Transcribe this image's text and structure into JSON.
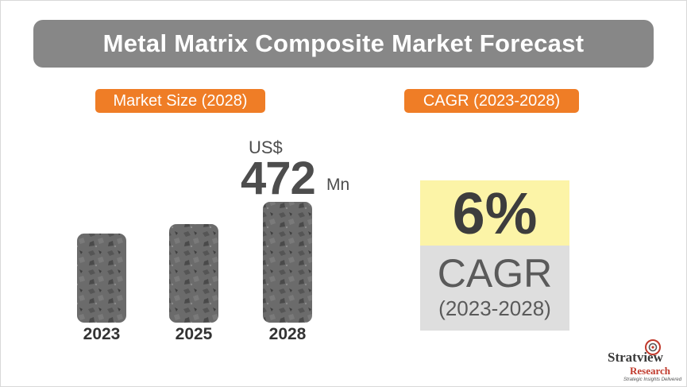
{
  "title": "Metal Matrix Composite Market Forecast",
  "market_size_label": "Market Size (2028)",
  "cagr_label": "CAGR (2023-2028)",
  "market_value": {
    "currency": "US$",
    "number": "472",
    "unit": "Mn"
  },
  "cagr": {
    "value": "6%",
    "word": "CAGR",
    "period": "(2023-2028)"
  },
  "brand": {
    "name": "Stratview",
    "sub": "Research",
    "tagline": "Strategic Insights Delivered"
  },
  "colors": {
    "accent": "#ef7d26",
    "title_bg": "#878787",
    "cagr_highlight": "#fcf4a7",
    "cagr_bg": "#dedede",
    "bar": "#6b6b6b"
  },
  "chart_data": {
    "type": "bar",
    "categories": [
      "2023",
      "2025",
      "2028"
    ],
    "values": [
      348,
      385,
      472
    ],
    "xlabel": "",
    "ylabel": "",
    "ylim": [
      0,
      472
    ]
  }
}
